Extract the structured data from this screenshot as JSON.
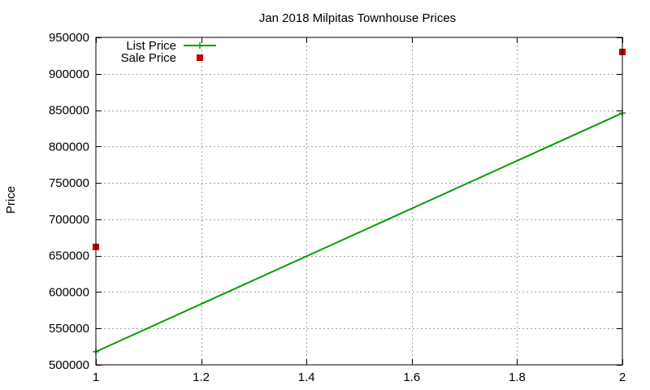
{
  "chart_data": {
    "type": "line",
    "title": "Jan 2018 Milpitas Townhouse Prices",
    "xlabel": "",
    "ylabel": "Price",
    "xlim": [
      1,
      2
    ],
    "ylim": [
      500000,
      950000
    ],
    "x_ticks": [
      1,
      1.2,
      1.4,
      1.6,
      1.8,
      2
    ],
    "x_tick_labels": [
      "1",
      "1.2",
      "1.4",
      "1.6",
      "1.8",
      "2"
    ],
    "y_ticks": [
      500000,
      550000,
      600000,
      650000,
      700000,
      750000,
      800000,
      850000,
      900000,
      950000
    ],
    "y_tick_labels": [
      "500000",
      "550000",
      "600000",
      "650000",
      "700000",
      "750000",
      "800000",
      "850000",
      "900000",
      "950000"
    ],
    "grid": true,
    "legend_position": "top-left",
    "series": [
      {
        "name": "List Price",
        "kind": "line",
        "marker": "plus",
        "color": "#00a000",
        "points": [
          [
            1,
            518000
          ],
          [
            2,
            846000
          ]
        ]
      },
      {
        "name": "Sale Price",
        "kind": "scatter",
        "marker": "square",
        "color": "#c00000",
        "points": [
          [
            1,
            662000
          ],
          [
            2,
            930000
          ]
        ]
      }
    ]
  }
}
